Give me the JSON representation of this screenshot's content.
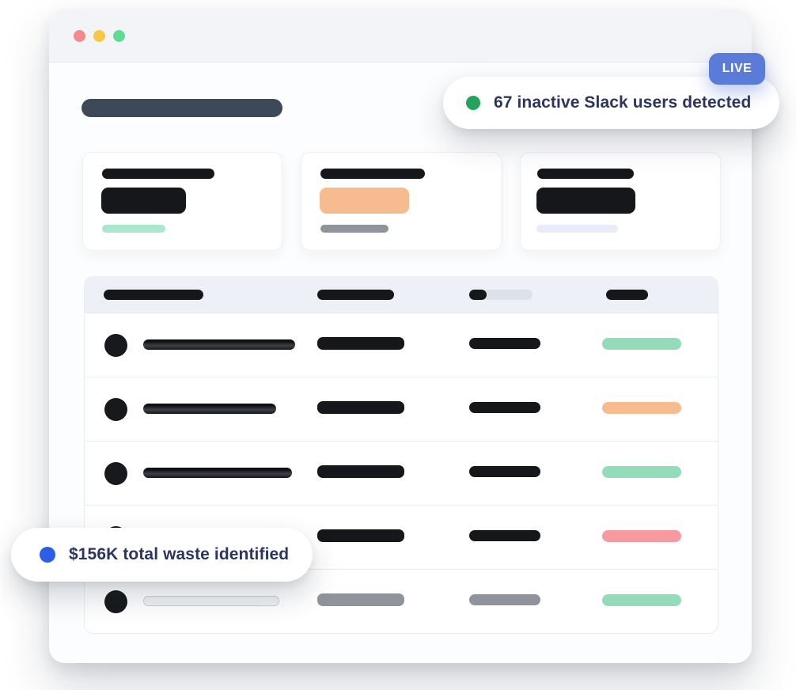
{
  "window": {
    "type": "browser-mockup",
    "controls": [
      {
        "name": "close",
        "color_key": "traffic_red"
      },
      {
        "name": "minimize",
        "color_key": "traffic_yellow"
      },
      {
        "name": "zoom",
        "color_key": "traffic_green"
      }
    ]
  },
  "live_badge": {
    "label": "LIVE"
  },
  "notifications": {
    "top": {
      "text": "67 inactive Slack users detected",
      "dot_color_key": "green_dot"
    },
    "bottom": {
      "text": "$156K total waste identified",
      "dot_color_key": "blue_dot"
    }
  },
  "stat_cards": [
    {
      "accent": "mint",
      "accent_color_key": "card_mint"
    },
    {
      "accent": "orange",
      "accent_color_key": "card_orange"
    },
    {
      "accent": "lavender",
      "accent_color_key": "card_lavender"
    }
  ],
  "table": {
    "column_count": 4,
    "rows": [
      {
        "status": "green",
        "status_color": "#93dcba",
        "tone": "dark",
        "name_width": 192
      },
      {
        "status": "orange",
        "status_color": "#f7bb90",
        "tone": "dark",
        "name_width": 168
      },
      {
        "status": "green",
        "status_color": "#93dcba",
        "tone": "dark",
        "name_width": 188
      },
      {
        "status": "red",
        "status_color": "#f79aa0",
        "tone": "dark",
        "name_width": 176
      },
      {
        "status": "green",
        "status_color": "#93dcba",
        "tone": "light",
        "name_width": 172
      }
    ]
  },
  "colors": {
    "accent_blue": "#5a7bd8",
    "green_dot": "#22a45c",
    "blue_dot": "#2c5fe8",
    "navy_text": "#2c3560",
    "title_bar": "#3d4859",
    "skeleton_dark": "#15171a",
    "pill_green": "#93dcba",
    "pill_orange": "#f7bb90",
    "pill_red": "#f79aa0",
    "card_mint": "#a9e7cf",
    "card_orange": "#f7bb90",
    "card_lavender": "#e8ecf7",
    "traffic_red": "#f4898e",
    "traffic_yellow": "#f5c84c",
    "traffic_green": "#5fdb93"
  }
}
